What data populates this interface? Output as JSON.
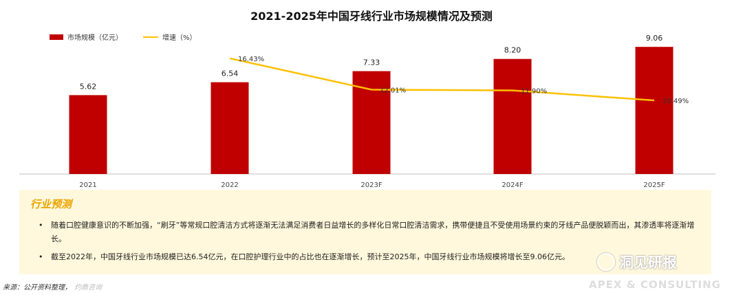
{
  "chart_data": {
    "type": "bar",
    "title": "2021-2025年中国牙线行业市场规模情况及预测",
    "categories": [
      "2021",
      "2022",
      "2023F",
      "2024F",
      "2025F"
    ],
    "series": [
      {
        "name": "市场规模（亿元）",
        "type": "bar",
        "values": [
          5.62,
          6.54,
          7.33,
          8.2,
          9.06
        ],
        "labels": [
          "5.62",
          "6.54",
          "7.33",
          "8.20",
          "9.06"
        ]
      },
      {
        "name": "增速（%）",
        "type": "line",
        "values": [
          null,
          16.43,
          12.01,
          11.9,
          10.49
        ],
        "labels": [
          "",
          "16.43%",
          "12.01%",
          "11.90%",
          "10.49%"
        ]
      }
    ],
    "legend_position": "top-left",
    "grid": false,
    "colors": {
      "bar": "#C00000",
      "line": "#FFC000"
    }
  },
  "panel": {
    "title": "行业预测",
    "bullets": [
      "随着口腔健康意识的不断加强，“刷牙”等常规口腔清洁方式将逐渐无法满足消费者日益增长的多样化日常口腔清洁需求，携带便捷且不受使用场景约束的牙线产品便脱颖而出，其渗透率将逐渐增长。",
      "截至2022年，中国牙线行业市场规模已达6.54亿元，在口腔护理行业中的占比也在逐渐增长，预计至2025年，中国牙线行业市场规模将增长至9.06亿元。"
    ]
  },
  "source": {
    "label": "来源：公开资料整理，",
    "faded": "灼鼎咨询"
  },
  "watermark": "洞见研报",
  "brand": "APEX & CONSULTING"
}
